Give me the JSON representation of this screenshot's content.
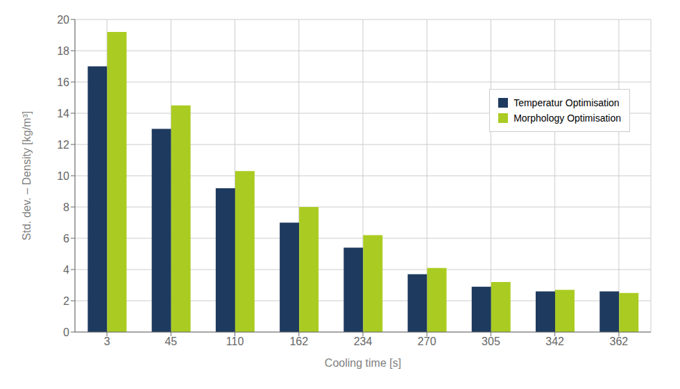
{
  "chart_data": {
    "type": "bar",
    "categories": [
      "3",
      "45",
      "110",
      "162",
      "234",
      "270",
      "305",
      "342",
      "362"
    ],
    "series": [
      {
        "name": "Temperatur Optimisation",
        "color": "#1e3a5f",
        "values": [
          17.0,
          13.0,
          9.2,
          7.0,
          5.4,
          3.7,
          2.9,
          2.6,
          2.6
        ]
      },
      {
        "name": "Morphology Optimisation",
        "color": "#aacc22",
        "values": [
          19.2,
          14.5,
          10.3,
          8.0,
          6.2,
          4.1,
          3.2,
          2.7,
          2.5
        ]
      }
    ],
    "xlabel": "Cooling time  [s]",
    "ylabel": "Std. dev. – Density  [kg/m³]",
    "ylim": [
      0,
      20
    ],
    "yticks": [
      0,
      2,
      4,
      6,
      8,
      10,
      12,
      14,
      16,
      18,
      20
    ],
    "grid": true,
    "legend": "right"
  }
}
